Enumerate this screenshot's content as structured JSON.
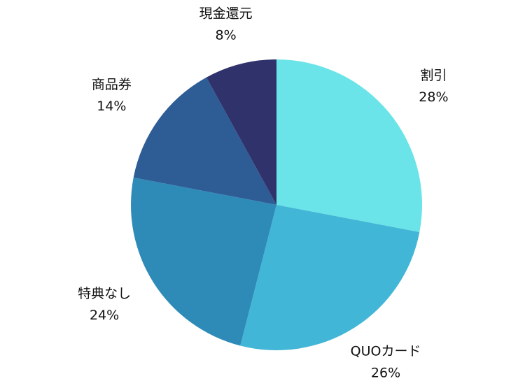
{
  "chart_data": {
    "type": "pie",
    "categories": [
      "割引",
      "QUOカード",
      "特典なし",
      "商品券",
      "現金還元"
    ],
    "values": [
      28,
      26,
      24,
      14,
      8
    ],
    "value_labels": [
      "28%",
      "26%",
      "24%",
      "14%",
      "8%"
    ],
    "colors": [
      "#6ae4e8",
      "#42b6d6",
      "#2e8bb8",
      "#2e5d96",
      "#30336b"
    ]
  }
}
